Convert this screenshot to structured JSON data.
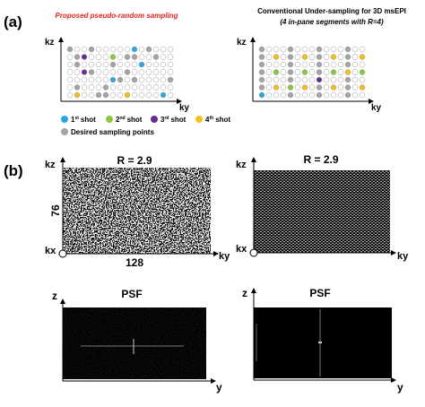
{
  "panel_a": {
    "label": "(a)",
    "left_title": "Proposed pseudo-random sampling",
    "right_title": [
      "Conventional Under-sampling for 3D msEPI",
      "(4 in-pane segments with R=4)"
    ],
    "axis_kz": "kz",
    "axis_ky": "ky",
    "legend": [
      {
        "num": "1",
        "sup": "st",
        "text": "shot",
        "color": "#29a8e0"
      },
      {
        "num": "2",
        "sup": "nd",
        "text": "shot",
        "color": "#8cc63f"
      },
      {
        "num": "3",
        "sup": "rd",
        "text": "shot",
        "color": "#662d91"
      },
      {
        "num": "4",
        "sup": "th",
        "text": "shot",
        "color": "#f5c01c"
      },
      {
        "text": "Desired sampling points",
        "color": "#a3a3a3"
      }
    ]
  },
  "panel_b": {
    "label": "(b)",
    "left": {
      "title": "R = 2.9",
      "kz": "kz",
      "ky": "ky",
      "kx": "kx",
      "height": 76,
      "width": 128
    },
    "right": {
      "title": "R = 2.9",
      "kz": "kz",
      "ky": "ky",
      "kx": "kx"
    },
    "psf_left": {
      "title": "PSF",
      "z": "z",
      "y": "y"
    },
    "psf_right": {
      "title": "PSF",
      "z": "z",
      "y": "y"
    }
  }
}
